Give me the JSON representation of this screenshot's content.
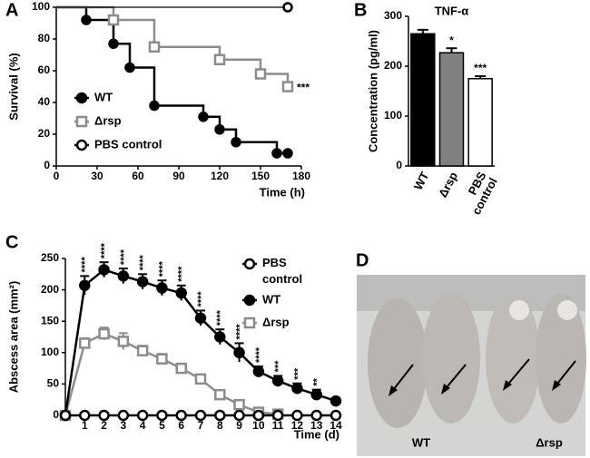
{
  "chart_data": [
    {
      "type": "step",
      "panel": "A",
      "ylabel": "Survival (%)",
      "xlabel": "Time (h)",
      "xlim": [
        0,
        180
      ],
      "xticks": [
        0,
        30,
        60,
        90,
        120,
        150,
        180
      ],
      "ylim": [
        0,
        100
      ],
      "yticks": [
        0,
        20,
        40,
        60,
        80,
        100
      ],
      "series": [
        {
          "name": "WT",
          "color": "#000000",
          "marker": "circle",
          "hollow": false,
          "x": [
            0,
            22,
            42,
            54,
            72,
            108,
            120,
            132,
            162,
            170
          ],
          "values": [
            100,
            92,
            77,
            62,
            38,
            31,
            23,
            15,
            8,
            8
          ]
        },
        {
          "name": "Δrsp",
          "color": "#8c8c8c",
          "marker": "square",
          "hollow": true,
          "x": [
            0,
            42,
            72,
            120,
            150,
            170
          ],
          "values": [
            100,
            92,
            75,
            67,
            58,
            50
          ],
          "end_label": "***"
        },
        {
          "name": "PBS control",
          "color": "#000000",
          "marker": "circle",
          "hollow": true,
          "x": [
            0,
            170
          ],
          "values": [
            100,
            100
          ]
        }
      ]
    },
    {
      "type": "bar",
      "panel": "B",
      "title": "TNF-α",
      "ylabel": "Concentration (pg/ml)",
      "ylim": [
        0,
        300
      ],
      "yticks": [
        0,
        100,
        200,
        300
      ],
      "categories": [
        "WT",
        "Δrsp",
        "PBS control"
      ],
      "values": [
        265,
        227,
        175
      ],
      "errors": [
        8,
        9,
        5
      ],
      "colors": [
        "#000000",
        "#808080",
        "#ffffff"
      ],
      "significance": [
        null,
        "*",
        "***"
      ]
    },
    {
      "type": "line",
      "panel": "C",
      "ylabel": "Abscess area (mm²)",
      "xlabel": "Time (d)",
      "xlim": [
        0,
        14
      ],
      "xticks": [
        1,
        2,
        3,
        4,
        5,
        6,
        7,
        8,
        9,
        10,
        11,
        12,
        13,
        14
      ],
      "ylim": [
        0,
        250
      ],
      "yticks": [
        0,
        50,
        100,
        150,
        200,
        250
      ],
      "x": [
        0,
        1,
        2,
        3,
        4,
        5,
        6,
        7,
        8,
        9,
        10,
        11,
        12,
        13,
        14
      ],
      "series": [
        {
          "name": "PBS control",
          "color": "#000000",
          "marker": "circle",
          "hollow": true,
          "values": [
            0,
            0,
            0,
            0,
            0,
            0,
            0,
            0,
            0,
            0,
            0,
            0,
            0,
            0,
            0
          ],
          "errors": [
            0,
            0,
            0,
            0,
            0,
            0,
            0,
            0,
            0,
            0,
            0,
            0,
            0,
            0,
            0
          ]
        },
        {
          "name": "WT",
          "color": "#000000",
          "marker": "circle",
          "hollow": false,
          "values": [
            0,
            207,
            232,
            222,
            213,
            203,
            195,
            155,
            125,
            100,
            70,
            55,
            43,
            33,
            23
          ],
          "errors": [
            0,
            15,
            12,
            12,
            12,
            12,
            12,
            12,
            12,
            15,
            8,
            8,
            8,
            8,
            3
          ]
        },
        {
          "name": "Δrsp",
          "color": "#8c8c8c",
          "marker": "square",
          "hollow": true,
          "values": [
            0,
            115,
            130,
            118,
            103,
            90,
            75,
            58,
            33,
            17,
            5,
            2,
            null,
            null,
            null
          ],
          "errors": [
            0,
            8,
            10,
            13,
            8,
            8,
            5,
            5,
            5,
            5,
            3,
            2,
            null,
            null,
            null
          ]
        }
      ],
      "significance": [
        null,
        "****",
        "****",
        "****",
        "****",
        "****",
        "****",
        "****",
        "****",
        "****",
        "****",
        "***",
        "***",
        "**",
        null
      ]
    }
  ],
  "photo": {
    "panel": "D",
    "labels": [
      "WT",
      "Δrsp"
    ]
  }
}
